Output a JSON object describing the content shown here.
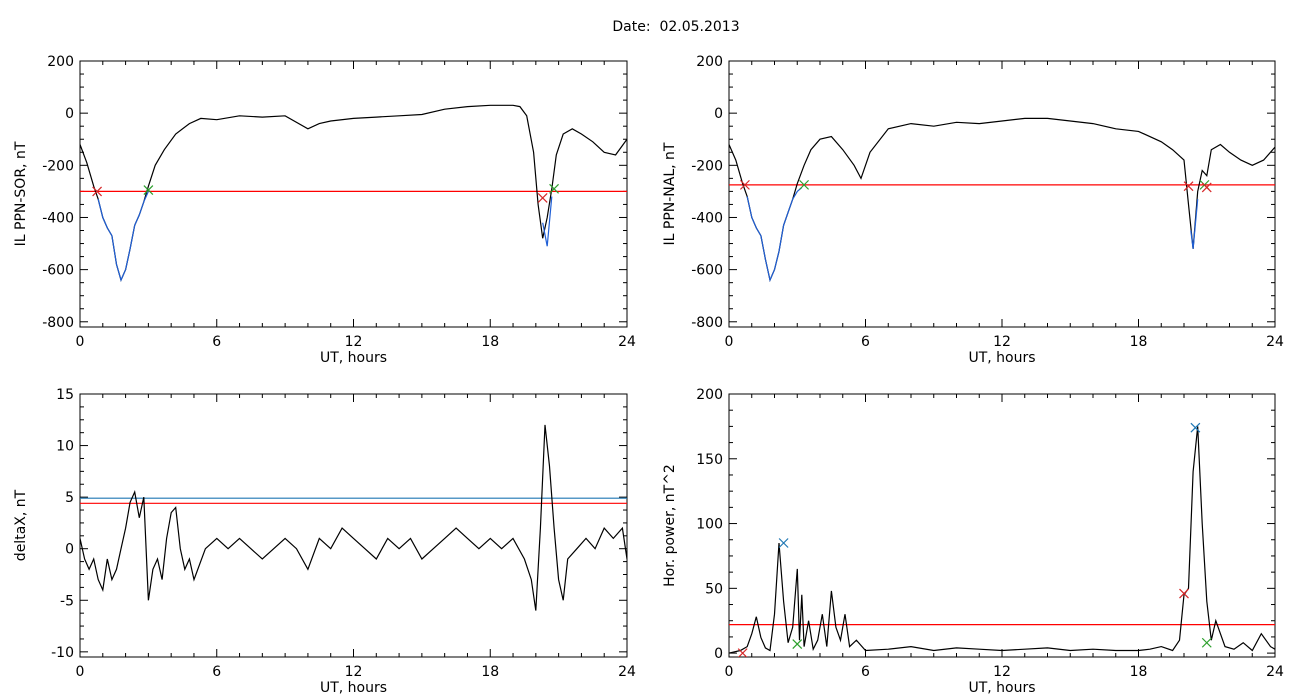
{
  "page": {
    "title": "Date:  02.05.2013"
  },
  "chart_data": [
    {
      "type": "line",
      "id": "p1",
      "xlabel": "UT, hours",
      "ylabel": "IL PPN-SOR, nT",
      "xlim": [
        0,
        24
      ],
      "ylim": [
        -820,
        200
      ],
      "xticks": [
        0,
        6,
        12,
        18,
        24
      ],
      "yticks": [
        200,
        0,
        -200,
        -400,
        -600,
        -800
      ],
      "series": [
        {
          "color": "#000000",
          "x": [
            0,
            0.3,
            0.6,
            0.8,
            1.0,
            1.2,
            1.4,
            1.6,
            1.8,
            2.0,
            2.2,
            2.4,
            2.6,
            2.8,
            3.0,
            3.3,
            3.7,
            4.2,
            4.8,
            5.3,
            6.0,
            7.0,
            8.0,
            9.0,
            10.0,
            10.5,
            11.0,
            12.0,
            13.0,
            14.0,
            15.0,
            16.0,
            17.0,
            18.0,
            19.0,
            19.3,
            19.6,
            19.9,
            20.1,
            20.3,
            20.5,
            20.7,
            20.9,
            21.2,
            21.6,
            22.0,
            22.5,
            23.0,
            23.5,
            24.0
          ],
          "y": [
            -120,
            -190,
            -280,
            -330,
            -400,
            -440,
            -470,
            -580,
            -640,
            -600,
            -520,
            -430,
            -390,
            -340,
            -280,
            -200,
            -140,
            -80,
            -40,
            -20,
            -25,
            -10,
            -15,
            -10,
            -60,
            -40,
            -30,
            -20,
            -15,
            -10,
            -5,
            15,
            25,
            30,
            30,
            25,
            -10,
            -150,
            -350,
            -480,
            -400,
            -290,
            -160,
            -80,
            -60,
            -80,
            -110,
            -150,
            -160,
            -100
          ]
        },
        {
          "color": "#1f5fd6",
          "x": [
            0.8,
            1.0,
            1.2,
            1.4,
            1.6,
            1.8,
            2.0,
            2.2,
            2.4,
            2.6,
            2.8,
            3.0
          ],
          "y": [
            -330,
            -400,
            -440,
            -470,
            -580,
            -640,
            -600,
            -520,
            -430,
            -390,
            -340,
            -300
          ]
        },
        {
          "color": "#1f5fd6",
          "x": [
            20.3,
            20.5,
            20.7
          ],
          "y": [
            -420,
            -510,
            -320
          ]
        }
      ],
      "hlines": [
        {
          "y": -300,
          "color": "#ff0000"
        }
      ],
      "markers": [
        {
          "x": 0.75,
          "y": -300,
          "color": "#d62728"
        },
        {
          "x": 3.0,
          "y": -295,
          "color": "#2ca02c"
        },
        {
          "x": 20.3,
          "y": -325,
          "color": "#d62728"
        },
        {
          "x": 20.8,
          "y": -290,
          "color": "#2ca02c"
        }
      ]
    },
    {
      "type": "line",
      "id": "p2",
      "xlabel": "UT, hours",
      "ylabel": "IL PPN-NAL, nT",
      "xlim": [
        0,
        24
      ],
      "ylim": [
        -820,
        200
      ],
      "xticks": [
        0,
        6,
        12,
        18,
        24
      ],
      "yticks": [
        200,
        0,
        -200,
        -400,
        -600,
        -800
      ],
      "series": [
        {
          "color": "#000000",
          "x": [
            0,
            0.3,
            0.6,
            0.8,
            1.0,
            1.2,
            1.4,
            1.6,
            1.8,
            2.0,
            2.2,
            2.4,
            2.6,
            2.8,
            3.0,
            3.3,
            3.6,
            4.0,
            4.5,
            5.0,
            5.5,
            5.8,
            6.2,
            7.0,
            8.0,
            9.0,
            10.0,
            11.0,
            12.0,
            13.0,
            14.0,
            15.0,
            16.0,
            17.0,
            18.0,
            19.0,
            19.5,
            20.0,
            20.2,
            20.4,
            20.6,
            20.8,
            21.0,
            21.2,
            21.6,
            22.0,
            22.5,
            23.0,
            23.5,
            24.0
          ],
          "y": [
            -120,
            -180,
            -270,
            -320,
            -400,
            -440,
            -470,
            -560,
            -640,
            -600,
            -530,
            -430,
            -380,
            -330,
            -270,
            -200,
            -140,
            -100,
            -90,
            -140,
            -200,
            -250,
            -150,
            -60,
            -40,
            -50,
            -35,
            -40,
            -30,
            -20,
            -20,
            -30,
            -40,
            -60,
            -70,
            -110,
            -140,
            -180,
            -350,
            -520,
            -300,
            -220,
            -240,
            -140,
            -120,
            -150,
            -180,
            -200,
            -180,
            -130
          ]
        },
        {
          "color": "#1f5fd6",
          "x": [
            0.8,
            1.0,
            1.2,
            1.4,
            1.6,
            1.8,
            2.0,
            2.2,
            2.4,
            2.6,
            2.8,
            3.0,
            3.2
          ],
          "y": [
            -320,
            -400,
            -440,
            -470,
            -560,
            -640,
            -600,
            -530,
            -430,
            -380,
            -330,
            -300,
            -285
          ]
        },
        {
          "color": "#1f5fd6",
          "x": [
            20.3,
            20.4,
            20.6
          ],
          "y": [
            -450,
            -520,
            -330
          ]
        }
      ],
      "hlines": [
        {
          "y": -275,
          "color": "#ff0000"
        }
      ],
      "markers": [
        {
          "x": 0.7,
          "y": -275,
          "color": "#d62728"
        },
        {
          "x": 3.3,
          "y": -275,
          "color": "#2ca02c"
        },
        {
          "x": 20.2,
          "y": -280,
          "color": "#d62728"
        },
        {
          "x": 20.9,
          "y": -275,
          "color": "#2ca02c"
        },
        {
          "x": 21.0,
          "y": -285,
          "color": "#d62728"
        }
      ]
    },
    {
      "type": "line",
      "id": "p3",
      "xlabel": "UT, hours",
      "ylabel": "deltaX, nT",
      "xlim": [
        0,
        24
      ],
      "ylim": [
        -10.5,
        15
      ],
      "xticks": [
        0,
        6,
        12,
        18,
        24
      ],
      "yticks": [
        15,
        10,
        5,
        0,
        -5,
        -10
      ],
      "series": [
        {
          "color": "#000000",
          "x": [
            0,
            0.2,
            0.4,
            0.6,
            0.8,
            1.0,
            1.2,
            1.4,
            1.6,
            1.8,
            2.0,
            2.2,
            2.4,
            2.6,
            2.8,
            3.0,
            3.2,
            3.4,
            3.6,
            3.8,
            4.0,
            4.2,
            4.4,
            4.6,
            4.8,
            5.0,
            5.5,
            6.0,
            6.5,
            7.0,
            7.5,
            8.0,
            8.5,
            9.0,
            9.5,
            10.0,
            10.5,
            11.0,
            11.5,
            12.0,
            12.5,
            13.0,
            13.5,
            14.0,
            14.5,
            15.0,
            15.5,
            16.0,
            16.5,
            17.0,
            17.5,
            18.0,
            18.5,
            19.0,
            19.5,
            19.8,
            20.0,
            20.2,
            20.4,
            20.6,
            20.8,
            21.0,
            21.2,
            21.4,
            21.8,
            22.2,
            22.6,
            23.0,
            23.4,
            23.8,
            24.0
          ],
          "y": [
            1,
            -1,
            -2,
            -1,
            -3,
            -4,
            -1,
            -3,
            -2,
            0,
            2,
            4.5,
            5.5,
            3,
            5,
            -5,
            -2,
            -1,
            -3,
            1,
            3.5,
            4,
            0,
            -2,
            -1,
            -3,
            0,
            1,
            0,
            1,
            0,
            -1,
            0,
            1,
            0,
            -2,
            1,
            0,
            2,
            1,
            0,
            -1,
            1,
            0,
            1,
            -1,
            0,
            1,
            2,
            1,
            0,
            1,
            0,
            1,
            -1,
            -3,
            -6,
            2,
            12,
            8,
            2,
            -3,
            -5,
            -1,
            0,
            1,
            0,
            2,
            1,
            2,
            -1
          ]
        }
      ],
      "hlines": [
        {
          "y": 4.9,
          "color": "#1f77b4"
        },
        {
          "y": 4.4,
          "color": "#ff0000"
        }
      ],
      "markers": []
    },
    {
      "type": "line",
      "id": "p4",
      "xlabel": "UT, hours",
      "ylabel": "Hor. power, nT^2",
      "xlim": [
        0,
        24
      ],
      "ylim": [
        -3,
        200
      ],
      "xticks": [
        0,
        6,
        12,
        18,
        24
      ],
      "yticks": [
        200,
        150,
        100,
        50,
        0
      ],
      "series": [
        {
          "color": "#000000",
          "x": [
            0,
            0.5,
            0.8,
            1.0,
            1.2,
            1.4,
            1.6,
            1.8,
            2.0,
            2.2,
            2.4,
            2.6,
            2.8,
            3.0,
            3.1,
            3.2,
            3.3,
            3.5,
            3.7,
            3.9,
            4.1,
            4.3,
            4.5,
            4.7,
            4.9,
            5.1,
            5.3,
            5.6,
            6.0,
            7.0,
            8.0,
            9.0,
            10.0,
            11.0,
            12.0,
            13.0,
            14.0,
            15.0,
            16.0,
            17.0,
            18.0,
            18.5,
            19.0,
            19.5,
            19.8,
            20.0,
            20.2,
            20.4,
            20.6,
            20.8,
            21.0,
            21.2,
            21.4,
            21.8,
            22.2,
            22.6,
            23.0,
            23.4,
            23.8,
            24.0
          ],
          "y": [
            0,
            2,
            5,
            15,
            28,
            12,
            4,
            2,
            30,
            85,
            40,
            8,
            20,
            65,
            10,
            45,
            5,
            25,
            3,
            10,
            30,
            5,
            48,
            20,
            10,
            30,
            5,
            10,
            2,
            3,
            5,
            2,
            4,
            3,
            2,
            3,
            4,
            2,
            3,
            2,
            2,
            3,
            5,
            2,
            10,
            45,
            50,
            140,
            175,
            100,
            40,
            10,
            25,
            5,
            3,
            8,
            2,
            15,
            5,
            3
          ]
        }
      ],
      "hlines": [
        {
          "y": 22,
          "color": "#ff0000"
        }
      ],
      "markers": [
        {
          "x": 0.6,
          "y": 0,
          "color": "#d62728"
        },
        {
          "x": 2.4,
          "y": 85,
          "color": "#1f77b4"
        },
        {
          "x": 3.0,
          "y": 7,
          "color": "#2ca02c"
        },
        {
          "x": 20.0,
          "y": 46,
          "color": "#d62728"
        },
        {
          "x": 20.5,
          "y": 174,
          "color": "#1f77b4"
        },
        {
          "x": 21.0,
          "y": 8,
          "color": "#2ca02c"
        }
      ]
    }
  ]
}
